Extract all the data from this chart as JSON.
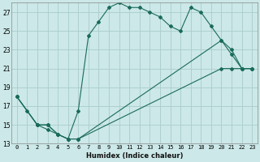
{
  "xlabel": "Humidex (Indice chaleur)",
  "bg_color": "#cce8e8",
  "grid_color": "#aacccc",
  "line_color": "#1a6b5a",
  "xlim": [
    -0.5,
    23.5
  ],
  "ylim": [
    13,
    28
  ],
  "xticks": [
    0,
    1,
    2,
    3,
    4,
    5,
    6,
    7,
    8,
    9,
    10,
    11,
    12,
    13,
    14,
    15,
    16,
    17,
    18,
    19,
    20,
    21,
    22,
    23
  ],
  "yticks": [
    13,
    15,
    17,
    19,
    21,
    23,
    25,
    27
  ],
  "line1_x": [
    0,
    1,
    2,
    3,
    4,
    5,
    6,
    7,
    8,
    9,
    10,
    11,
    12,
    13,
    14,
    15,
    16,
    17,
    18,
    19,
    20,
    21,
    22,
    23
  ],
  "line1_y": [
    18,
    16.5,
    15,
    14.5,
    14,
    13.5,
    16.5,
    24.5,
    26,
    27.5,
    28,
    27.5,
    27.5,
    27,
    26.5,
    25.5,
    25,
    27.5,
    27,
    25.5,
    24,
    22.5,
    21,
    21
  ],
  "line2_x": [
    0,
    2,
    3,
    4,
    5,
    6,
    20,
    21,
    22,
    23
  ],
  "line2_y": [
    18,
    15,
    15,
    14,
    13.5,
    13.5,
    24,
    23,
    21,
    21
  ],
  "line3_x": [
    0,
    2,
    3,
    4,
    5,
    6,
    20,
    21,
    22,
    23
  ],
  "line3_y": [
    18,
    15,
    15,
    14,
    13.5,
    13.5,
    21,
    21,
    21,
    21
  ],
  "xlabel_fontsize": 6.0,
  "tick_fontsize": 5.0
}
